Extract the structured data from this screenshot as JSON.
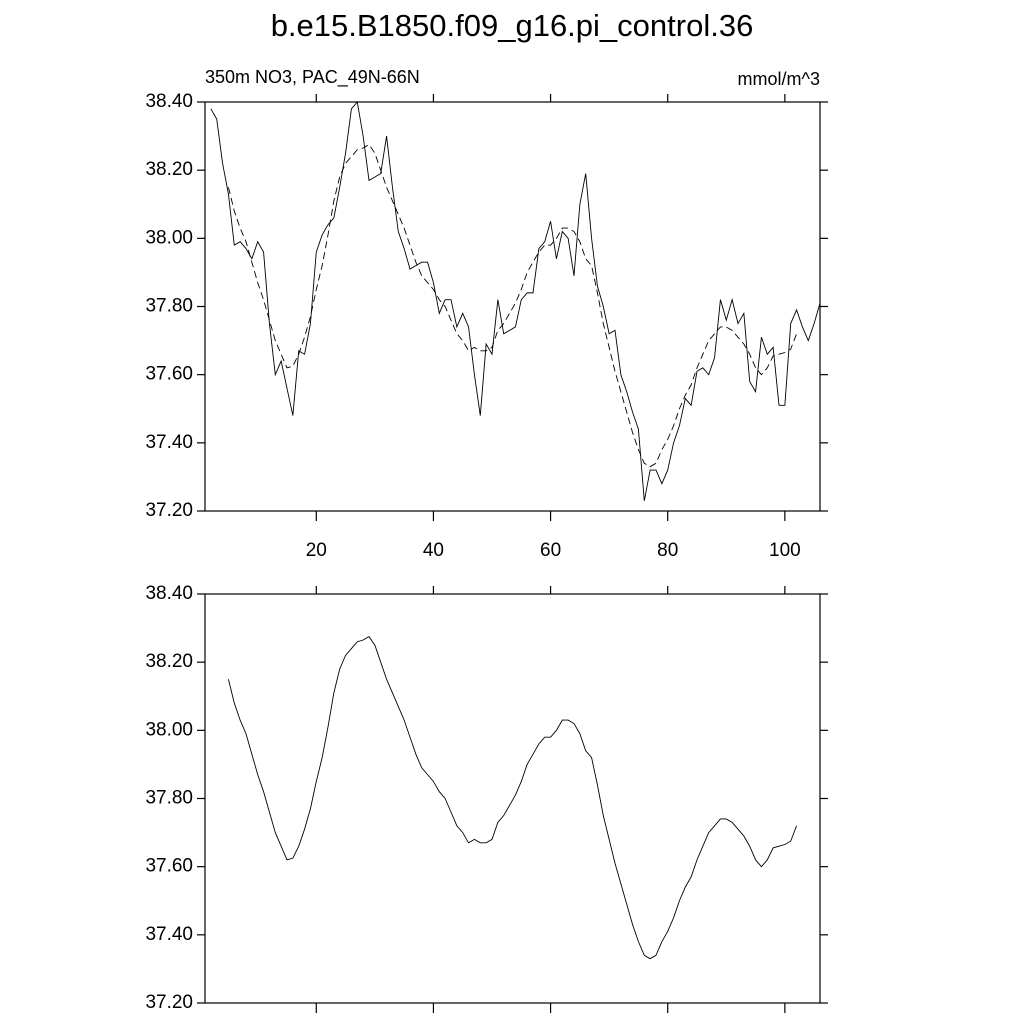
{
  "chart_data": [
    {
      "type": "line",
      "title": "b.e15.B1850.f09_g16.pi_control.36",
      "subtitle_left": "350m NO3, PAC_49N-66N",
      "subtitle_right": "mmol/m^3",
      "x": [
        2,
        3,
        4,
        5,
        6,
        7,
        8,
        9,
        10,
        11,
        12,
        13,
        14,
        15,
        16,
        17,
        18,
        19,
        20,
        21,
        22,
        23,
        24,
        25,
        26,
        27,
        28,
        29,
        30,
        31,
        32,
        33,
        34,
        35,
        36,
        37,
        38,
        39,
        40,
        41,
        42,
        43,
        44,
        45,
        46,
        47,
        48,
        49,
        50,
        51,
        52,
        53,
        54,
        55,
        56,
        57,
        58,
        59,
        60,
        61,
        62,
        63,
        64,
        65,
        66,
        67,
        68,
        69,
        70,
        71,
        72,
        73,
        74,
        75,
        76,
        77,
        78,
        79,
        80,
        81,
        82,
        83,
        84,
        85,
        86,
        87,
        88,
        89,
        90,
        91,
        92,
        93,
        94,
        95,
        96,
        97,
        98,
        99,
        100,
        101,
        102,
        103,
        104,
        105,
        106
      ],
      "series": [
        {
          "color": "#000000",
          "dash": false,
          "values": [
            38.38,
            38.35,
            38.22,
            38.13,
            37.98,
            37.99,
            37.97,
            37.94,
            37.99,
            37.96,
            37.75,
            37.6,
            37.64,
            37.56,
            37.48,
            37.67,
            37.66,
            37.75,
            37.96,
            38.01,
            38.04,
            38.06,
            38.15,
            38.25,
            38.38,
            38.4,
            38.3,
            38.17,
            38.18,
            38.19,
            38.3,
            38.15,
            38.02,
            37.97,
            37.91,
            37.92,
            37.93,
            37.93,
            37.87,
            37.78,
            37.82,
            37.82,
            37.74,
            37.78,
            37.74,
            37.6,
            37.48,
            37.69,
            37.66,
            37.82,
            37.72,
            37.73,
            37.74,
            37.82,
            37.84,
            37.84,
            37.97,
            37.99,
            38.05,
            37.94,
            38.02,
            38.0,
            37.89,
            38.1,
            38.19,
            38.0,
            37.86,
            37.8,
            37.72,
            37.73,
            37.6,
            37.55,
            37.49,
            37.44,
            37.23,
            37.32,
            37.32,
            37.28,
            37.32,
            37.4,
            37.45,
            37.53,
            37.51,
            37.61,
            37.62,
            37.6,
            37.65,
            37.82,
            37.76,
            37.82,
            37.75,
            37.78,
            37.58,
            37.55,
            37.71,
            37.66,
            37.68,
            37.51,
            37.51,
            37.75,
            37.79,
            37.74,
            37.7,
            37.75,
            37.81
          ]
        },
        {
          "color": "#000000",
          "dash": true,
          "values": [
            null,
            null,
            null,
            38.15,
            38.08,
            38.03,
            37.99,
            37.93,
            37.87,
            37.82,
            37.76,
            37.7,
            37.66,
            37.62,
            37.625,
            37.66,
            37.71,
            37.77,
            37.85,
            37.92,
            38.01,
            38.11,
            38.18,
            38.22,
            38.24,
            38.26,
            38.265,
            38.275,
            38.25,
            38.2,
            38.15,
            38.11,
            38.07,
            38.03,
            37.98,
            37.93,
            37.89,
            37.87,
            37.85,
            37.82,
            37.8,
            37.76,
            37.72,
            37.7,
            37.67,
            37.68,
            37.67,
            37.67,
            37.68,
            37.73,
            37.75,
            37.78,
            37.81,
            37.85,
            37.9,
            37.93,
            37.96,
            37.98,
            37.98,
            38.0,
            38.03,
            38.03,
            38.02,
            37.99,
            37.94,
            37.92,
            37.84,
            37.75,
            37.68,
            37.61,
            37.55,
            37.49,
            37.43,
            37.38,
            37.34,
            37.33,
            37.34,
            37.38,
            37.41,
            37.45,
            37.5,
            37.54,
            37.57,
            37.62,
            37.66,
            37.7,
            37.72,
            37.74,
            37.74,
            37.73,
            37.71,
            37.69,
            37.66,
            37.62,
            37.6,
            37.62,
            37.655,
            37.66,
            37.665,
            37.675,
            37.72,
            null,
            null,
            null,
            null
          ]
        }
      ],
      "xlim": [
        1,
        106
      ],
      "ylim": [
        37.2,
        38.4
      ],
      "xticks": [
        20,
        40,
        60,
        80,
        100
      ],
      "yticks": [
        {
          "value": 37.2,
          "label": "37.20"
        },
        {
          "value": 37.4,
          "label": "37.40"
        },
        {
          "value": 37.6,
          "label": "37.60"
        },
        {
          "value": 37.8,
          "label": "37.80"
        },
        {
          "value": 38.0,
          "label": "38.00"
        },
        {
          "value": 38.2,
          "label": "38.20"
        },
        {
          "value": 38.4,
          "label": "38.40"
        }
      ],
      "show_xtick_labels": true
    },
    {
      "type": "line",
      "x": [
        5,
        6,
        7,
        8,
        9,
        10,
        11,
        12,
        13,
        14,
        15,
        16,
        17,
        18,
        19,
        20,
        21,
        22,
        23,
        24,
        25,
        26,
        27,
        28,
        29,
        30,
        31,
        32,
        33,
        34,
        35,
        36,
        37,
        38,
        39,
        40,
        41,
        42,
        43,
        44,
        45,
        46,
        47,
        48,
        49,
        50,
        51,
        52,
        53,
        54,
        55,
        56,
        57,
        58,
        59,
        60,
        61,
        62,
        63,
        64,
        65,
        66,
        67,
        68,
        69,
        70,
        71,
        72,
        73,
        74,
        75,
        76,
        77,
        78,
        79,
        80,
        81,
        82,
        83,
        84,
        85,
        86,
        87,
        88,
        89,
        90,
        91,
        92,
        93,
        94,
        95,
        96,
        97,
        98,
        99,
        100,
        101,
        102
      ],
      "series": [
        {
          "color": "#000000",
          "dash": false,
          "values": [
            38.15,
            38.08,
            38.03,
            37.99,
            37.93,
            37.87,
            37.82,
            37.76,
            37.7,
            37.66,
            37.62,
            37.625,
            37.66,
            37.71,
            37.77,
            37.85,
            37.92,
            38.01,
            38.11,
            38.18,
            38.22,
            38.24,
            38.26,
            38.265,
            38.275,
            38.25,
            38.2,
            38.15,
            38.11,
            38.07,
            38.03,
            37.98,
            37.93,
            37.89,
            37.87,
            37.85,
            37.82,
            37.8,
            37.76,
            37.72,
            37.7,
            37.67,
            37.68,
            37.67,
            37.67,
            37.68,
            37.73,
            37.75,
            37.78,
            37.81,
            37.85,
            37.9,
            37.93,
            37.96,
            37.98,
            37.98,
            38.0,
            38.03,
            38.03,
            38.02,
            37.99,
            37.94,
            37.92,
            37.84,
            37.75,
            37.68,
            37.61,
            37.55,
            37.49,
            37.43,
            37.38,
            37.34,
            37.33,
            37.34,
            37.38,
            37.41,
            37.45,
            37.5,
            37.54,
            37.57,
            37.62,
            37.66,
            37.7,
            37.72,
            37.74,
            37.74,
            37.73,
            37.71,
            37.69,
            37.66,
            37.62,
            37.6,
            37.62,
            37.655,
            37.66,
            37.665,
            37.675,
            37.72
          ]
        }
      ],
      "xlim": [
        1,
        106
      ],
      "ylim": [
        37.2,
        38.4
      ],
      "xticks": [
        20,
        40,
        60,
        80,
        100
      ],
      "yticks": [
        {
          "value": 37.2,
          "label": "37.20"
        },
        {
          "value": 37.4,
          "label": "37.40"
        },
        {
          "value": 37.6,
          "label": "37.60"
        },
        {
          "value": 37.8,
          "label": "37.80"
        },
        {
          "value": 38.0,
          "label": "38.00"
        },
        {
          "value": 38.2,
          "label": "38.20"
        },
        {
          "value": 38.4,
          "label": "38.40"
        }
      ],
      "show_xtick_labels": false
    }
  ]
}
